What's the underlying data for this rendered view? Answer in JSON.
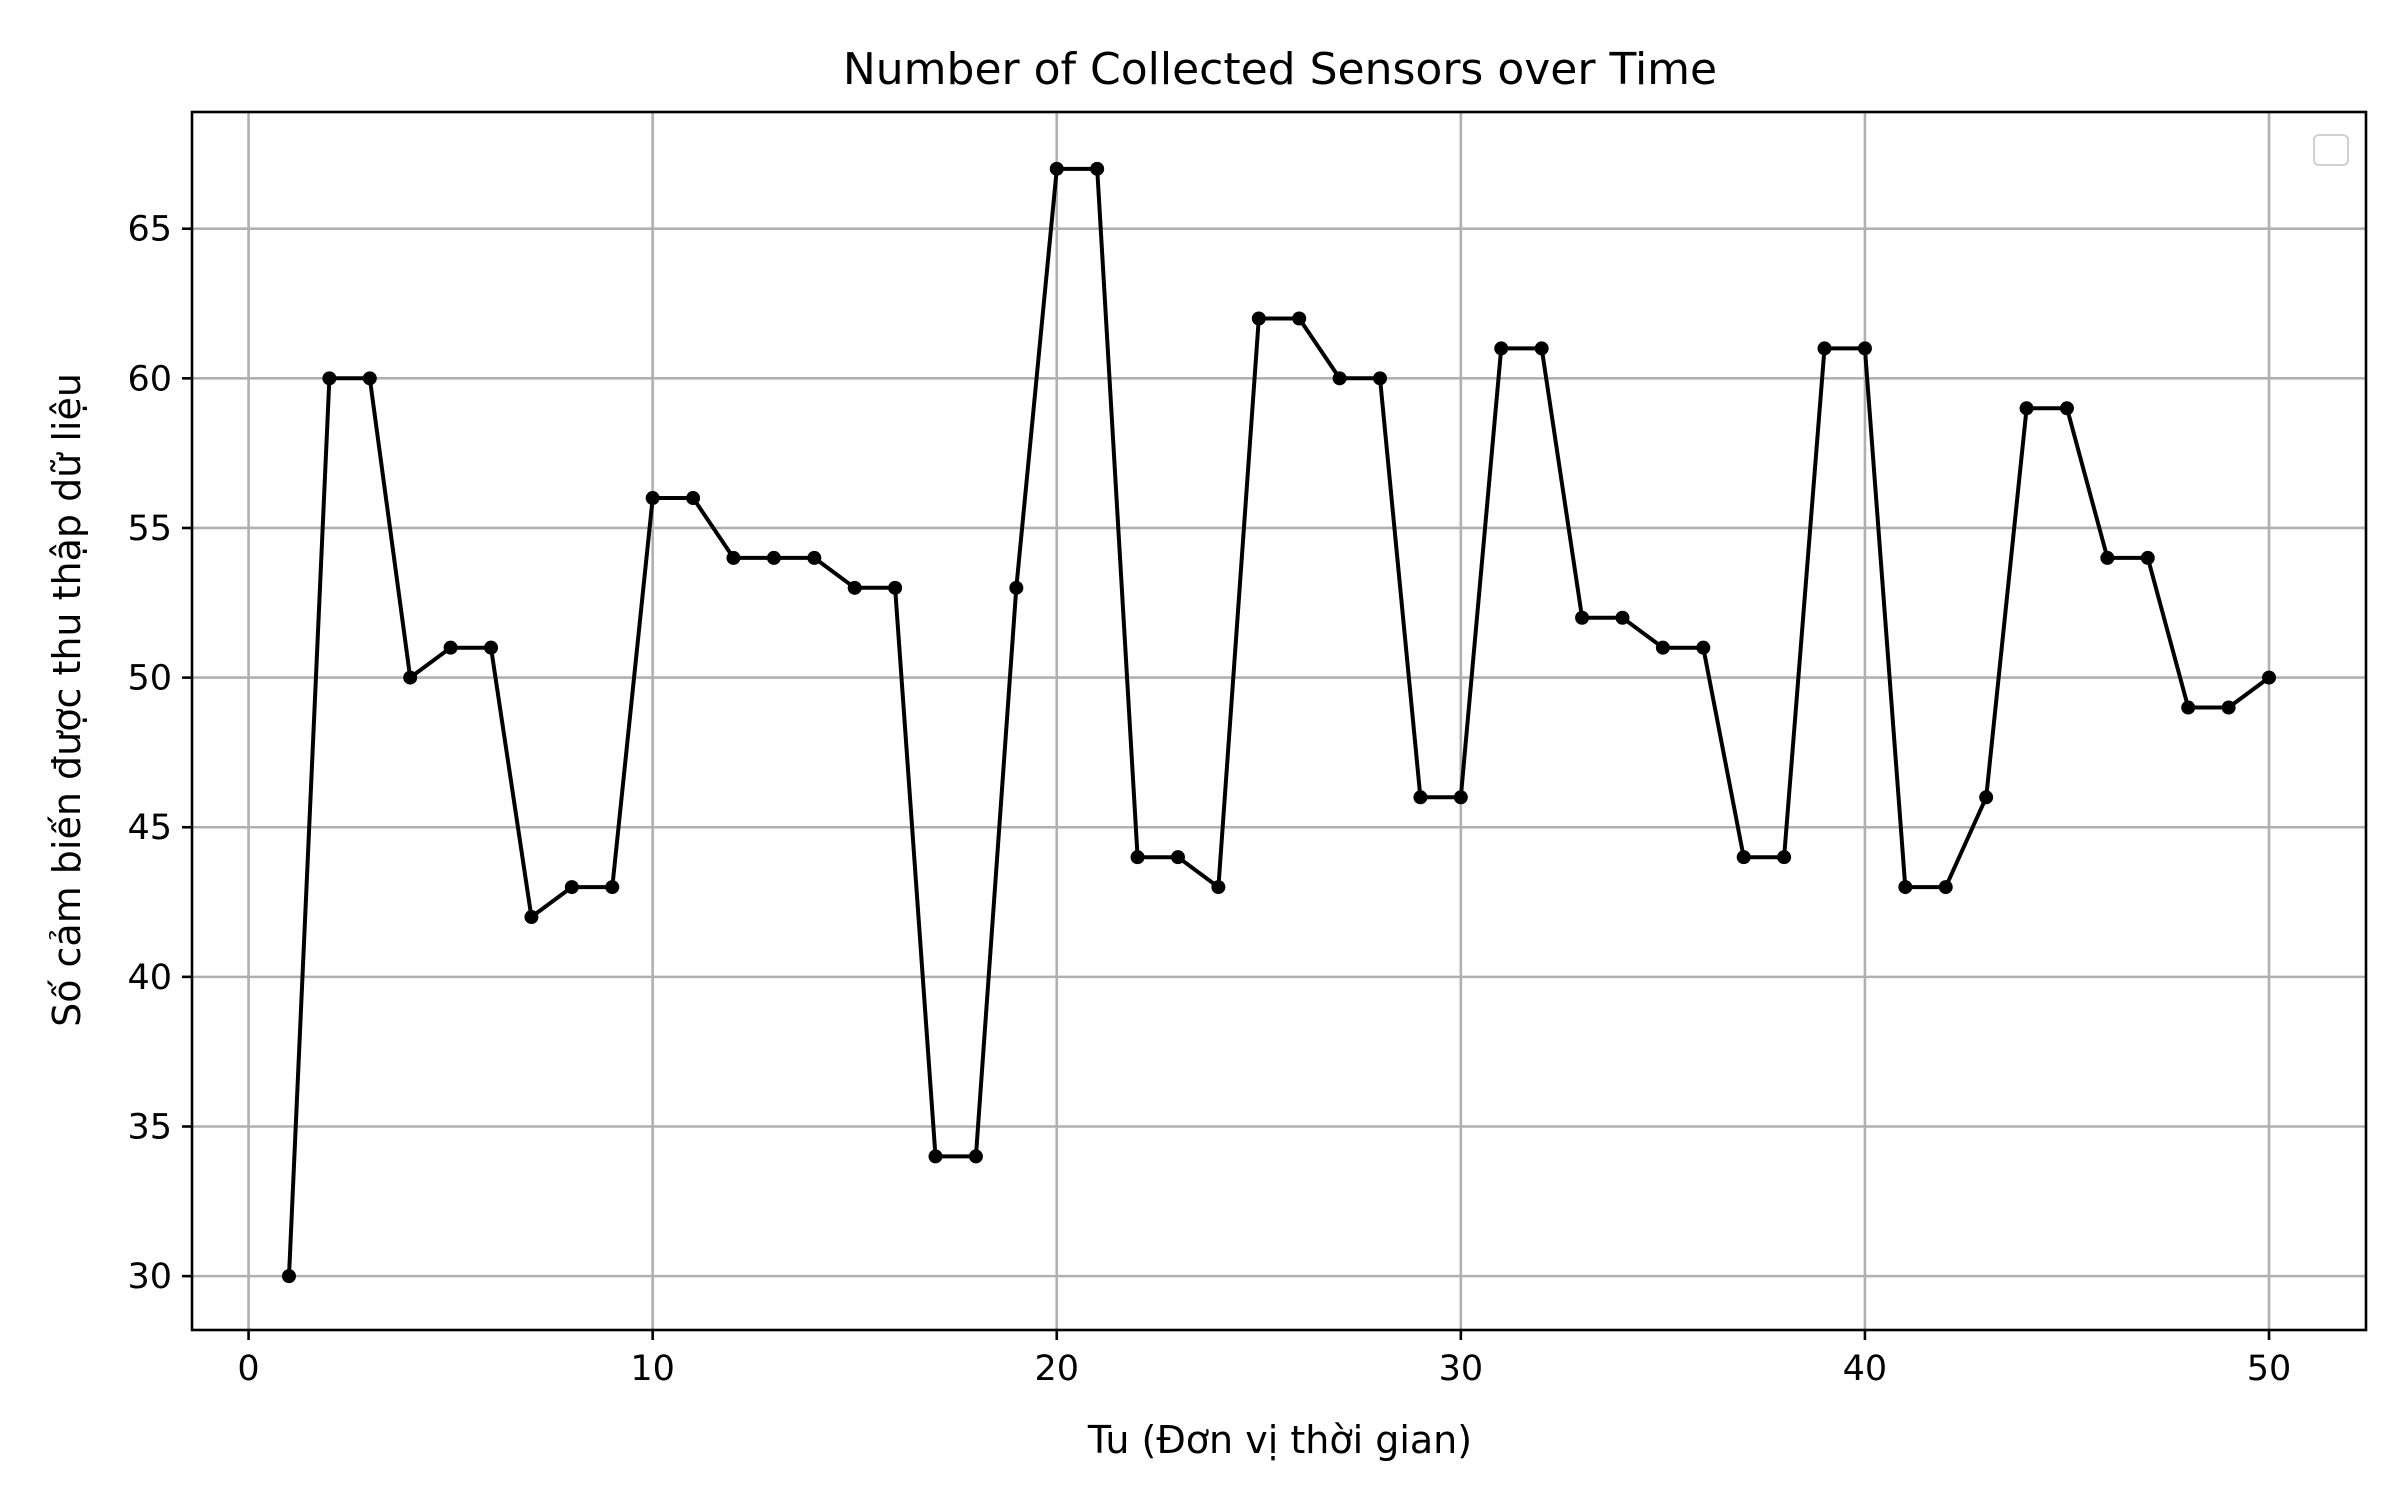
{
  "chart_data": {
    "type": "line",
    "title": "Number of Collected Sensors over Time",
    "xlabel": "Tu (Đơn vị thời gian)",
    "ylabel": "Số cảm biến được thu thập dữ liệu",
    "xlim": [
      -1.4,
      52.4
    ],
    "ylim": [
      28.2,
      68.9
    ],
    "xticks": [
      0,
      10,
      20,
      30,
      40,
      50
    ],
    "yticks": [
      30,
      35,
      40,
      45,
      50,
      55,
      60,
      65
    ],
    "grid": true,
    "legend": "top-right, empty",
    "series": [
      {
        "color": "#000000",
        "marker": "circle",
        "x": [
          1,
          2,
          3,
          4,
          5,
          6,
          7,
          8,
          9,
          10,
          11,
          12,
          13,
          14,
          15,
          16,
          17,
          18,
          19,
          20,
          21,
          22,
          23,
          24,
          25,
          26,
          27,
          28,
          29,
          30,
          31,
          32,
          33,
          34,
          35,
          36,
          37,
          38,
          39,
          40,
          41,
          42,
          43,
          44,
          45,
          46,
          47,
          48,
          49,
          50
        ],
        "values": [
          30,
          60,
          60,
          50,
          51,
          51,
          42,
          43,
          43,
          56,
          56,
          54,
          54,
          54,
          53,
          53,
          34,
          34,
          53,
          67,
          67,
          44,
          44,
          43,
          62,
          62,
          60,
          60,
          46,
          46,
          61,
          61,
          52,
          52,
          51,
          51,
          44,
          44,
          61,
          61,
          43,
          43,
          46,
          59,
          59,
          54,
          54,
          49,
          49,
          50
        ]
      }
    ]
  }
}
